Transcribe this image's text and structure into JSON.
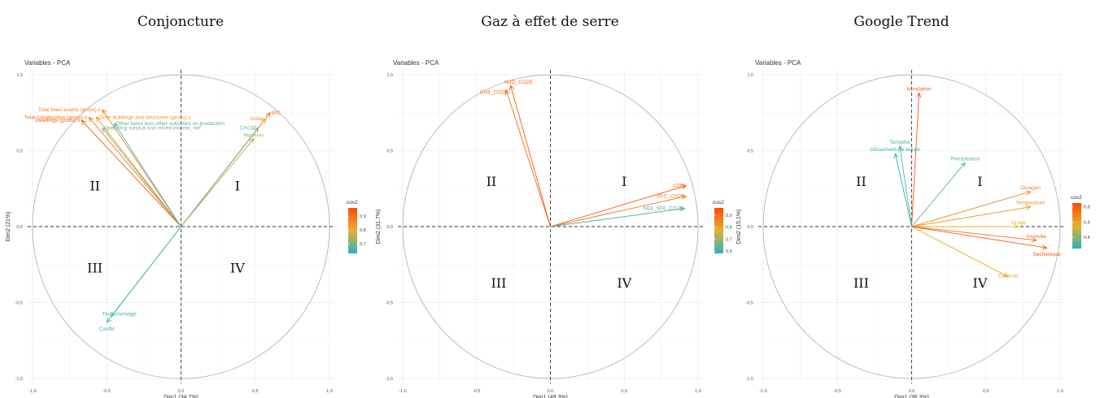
{
  "titles": [
    "Conjoncture",
    "Gaz à effet de serre",
    "Google Trend"
  ],
  "chart_data": [
    {
      "type": "scatter",
      "title": "Variables - PCA",
      "xlabel": "Dim1 (34.7%)",
      "ylabel": "Dim2 (21%)",
      "xlim": [
        -1.0,
        1.0
      ],
      "ylim": [
        -1.0,
        1.0
      ],
      "xticks": [
        "-1.0",
        "-0.5",
        "0.0",
        "0.5",
        "1.0"
      ],
      "yticks": [
        "-1.0",
        "-0.5",
        "0.0",
        "0.5",
        "1.0"
      ],
      "quadrants": [
        "I",
        "II",
        "III",
        "IV"
      ],
      "legend": {
        "title": "cos2",
        "ticks": [
          "0.9",
          "0.8",
          "0.7"
        ],
        "range": [
          0.63,
          0.96
        ]
      },
      "variables": [
        {
          "name": "Total fixed assets (gross).x",
          "x": -0.53,
          "y": 0.77,
          "cos2": 0.87
        },
        {
          "name": "Other buildings and structures (gross).x",
          "x": -0.57,
          "y": 0.72,
          "cos2": 0.84
        },
        {
          "name": "Total construction (gross).x",
          "x": -0.62,
          "y": 0.72,
          "cos2": 0.9
        },
        {
          "name": "Dwellings (gross).x",
          "x": -0.67,
          "y": 0.7,
          "cos2": 0.94
        },
        {
          "name": "Other taxes less other subsidies on production",
          "x": -0.45,
          "y": 0.68,
          "cos2": 0.66
        },
        {
          "name": "Operating surplus and mixed income, net",
          "x": -0.53,
          "y": 0.65,
          "cos2": 0.7
        },
        {
          "name": "IPC",
          "x": 0.6,
          "y": 0.75,
          "cos2": 0.92
        },
        {
          "name": "Dollar",
          "x": 0.57,
          "y": 0.71,
          "cos2": 0.82
        },
        {
          "name": "CAC40",
          "x": 0.52,
          "y": 0.65,
          "cos2": 0.69
        },
        {
          "name": "Matières",
          "x": 0.49,
          "y": 0.58,
          "cos2": 0.74
        },
        {
          "name": "Taux chomage",
          "x": -0.47,
          "y": -0.59,
          "cos2": 0.64
        },
        {
          "name": "ConfM",
          "x": -0.5,
          "y": -0.63,
          "cos2": 0.65
        }
      ]
    },
    {
      "type": "scatter",
      "title": "Variables - PCA",
      "xlabel": "Dim1 (49.3%)",
      "ylabel": "Dim2 (31.7%)",
      "xlim": [
        -1.0,
        1.0
      ],
      "ylim": [
        -1.0,
        1.0
      ],
      "xticks": [
        "-1.0",
        "-0.5",
        "0.0",
        "0.5",
        "1.0"
      ],
      "yticks": [
        "-1.0",
        "-0.5",
        "0.0",
        "0.5",
        "1.0"
      ],
      "quadrants": [
        "I",
        "II",
        "III",
        "IV"
      ],
      "legend": {
        "title": "cos2",
        "ticks": [
          "0.9",
          "0.8",
          "0.7",
          "0.6"
        ],
        "range": [
          0.58,
          0.96
        ]
      },
      "variables": [
        {
          "name": "N2O_CO2E",
          "x": -0.27,
          "y": 0.93,
          "cos2": 0.93
        },
        {
          "name": "CH4_CO2E",
          "x": -0.3,
          "y": 0.9,
          "cos2": 0.9
        },
        {
          "name": "CO2",
          "x": 0.92,
          "y": 0.27,
          "cos2": 0.93
        },
        {
          "name": "PFC_CO2E",
          "x": 0.92,
          "y": 0.2,
          "cos2": 0.87
        },
        {
          "name": "NF3_SF6_CO2E",
          "x": 0.91,
          "y": 0.12,
          "cos2": 0.62
        }
      ]
    },
    {
      "type": "scatter",
      "title": "Variables - PCA",
      "xlabel": "Dim1 (36.3%)",
      "ylabel": "Dim2 (15.1%)",
      "xlim": [
        -1.0,
        1.0
      ],
      "ylim": [
        -1.0,
        1.0
      ],
      "xticks": [
        "-1.0",
        "-0.5",
        "0.0",
        "0.5",
        "1.0"
      ],
      "yticks": [
        "-1.0",
        "-0.5",
        "0.0",
        "0.5",
        "1.0"
      ],
      "quadrants": [
        "I",
        "II",
        "III",
        "IV"
      ],
      "legend": {
        "title": "cos2",
        "ticks": [
          "0.8",
          "0.6",
          "0.4"
        ],
        "range": [
          0.25,
          0.85
        ]
      },
      "variables": [
        {
          "name": "Inondation",
          "x": 0.05,
          "y": 0.88,
          "cos2": 0.8
        },
        {
          "name": "Tempête",
          "x": -0.08,
          "y": 0.53,
          "cos2": 0.3
        },
        {
          "name": "Glissement de terrain",
          "x": -0.11,
          "y": 0.48,
          "cos2": 0.26
        },
        {
          "name": "Precipitation",
          "x": 0.36,
          "y": 0.42,
          "cos2": 0.32
        },
        {
          "name": "Ouragan",
          "x": 0.8,
          "y": 0.23,
          "cos2": 0.68
        },
        {
          "name": "Temperature",
          "x": 0.8,
          "y": 0.13,
          "cos2": 0.63
        },
        {
          "name": "Orage",
          "x": 0.72,
          "y": 0.0,
          "cos2": 0.55
        },
        {
          "name": "Incendie",
          "x": 0.84,
          "y": -0.09,
          "cos2": 0.75
        },
        {
          "name": "Secheresse",
          "x": 0.91,
          "y": -0.14,
          "cos2": 0.83
        },
        {
          "name": "Canicule",
          "x": 0.65,
          "y": -0.33,
          "cos2": 0.58
        }
      ]
    }
  ]
}
